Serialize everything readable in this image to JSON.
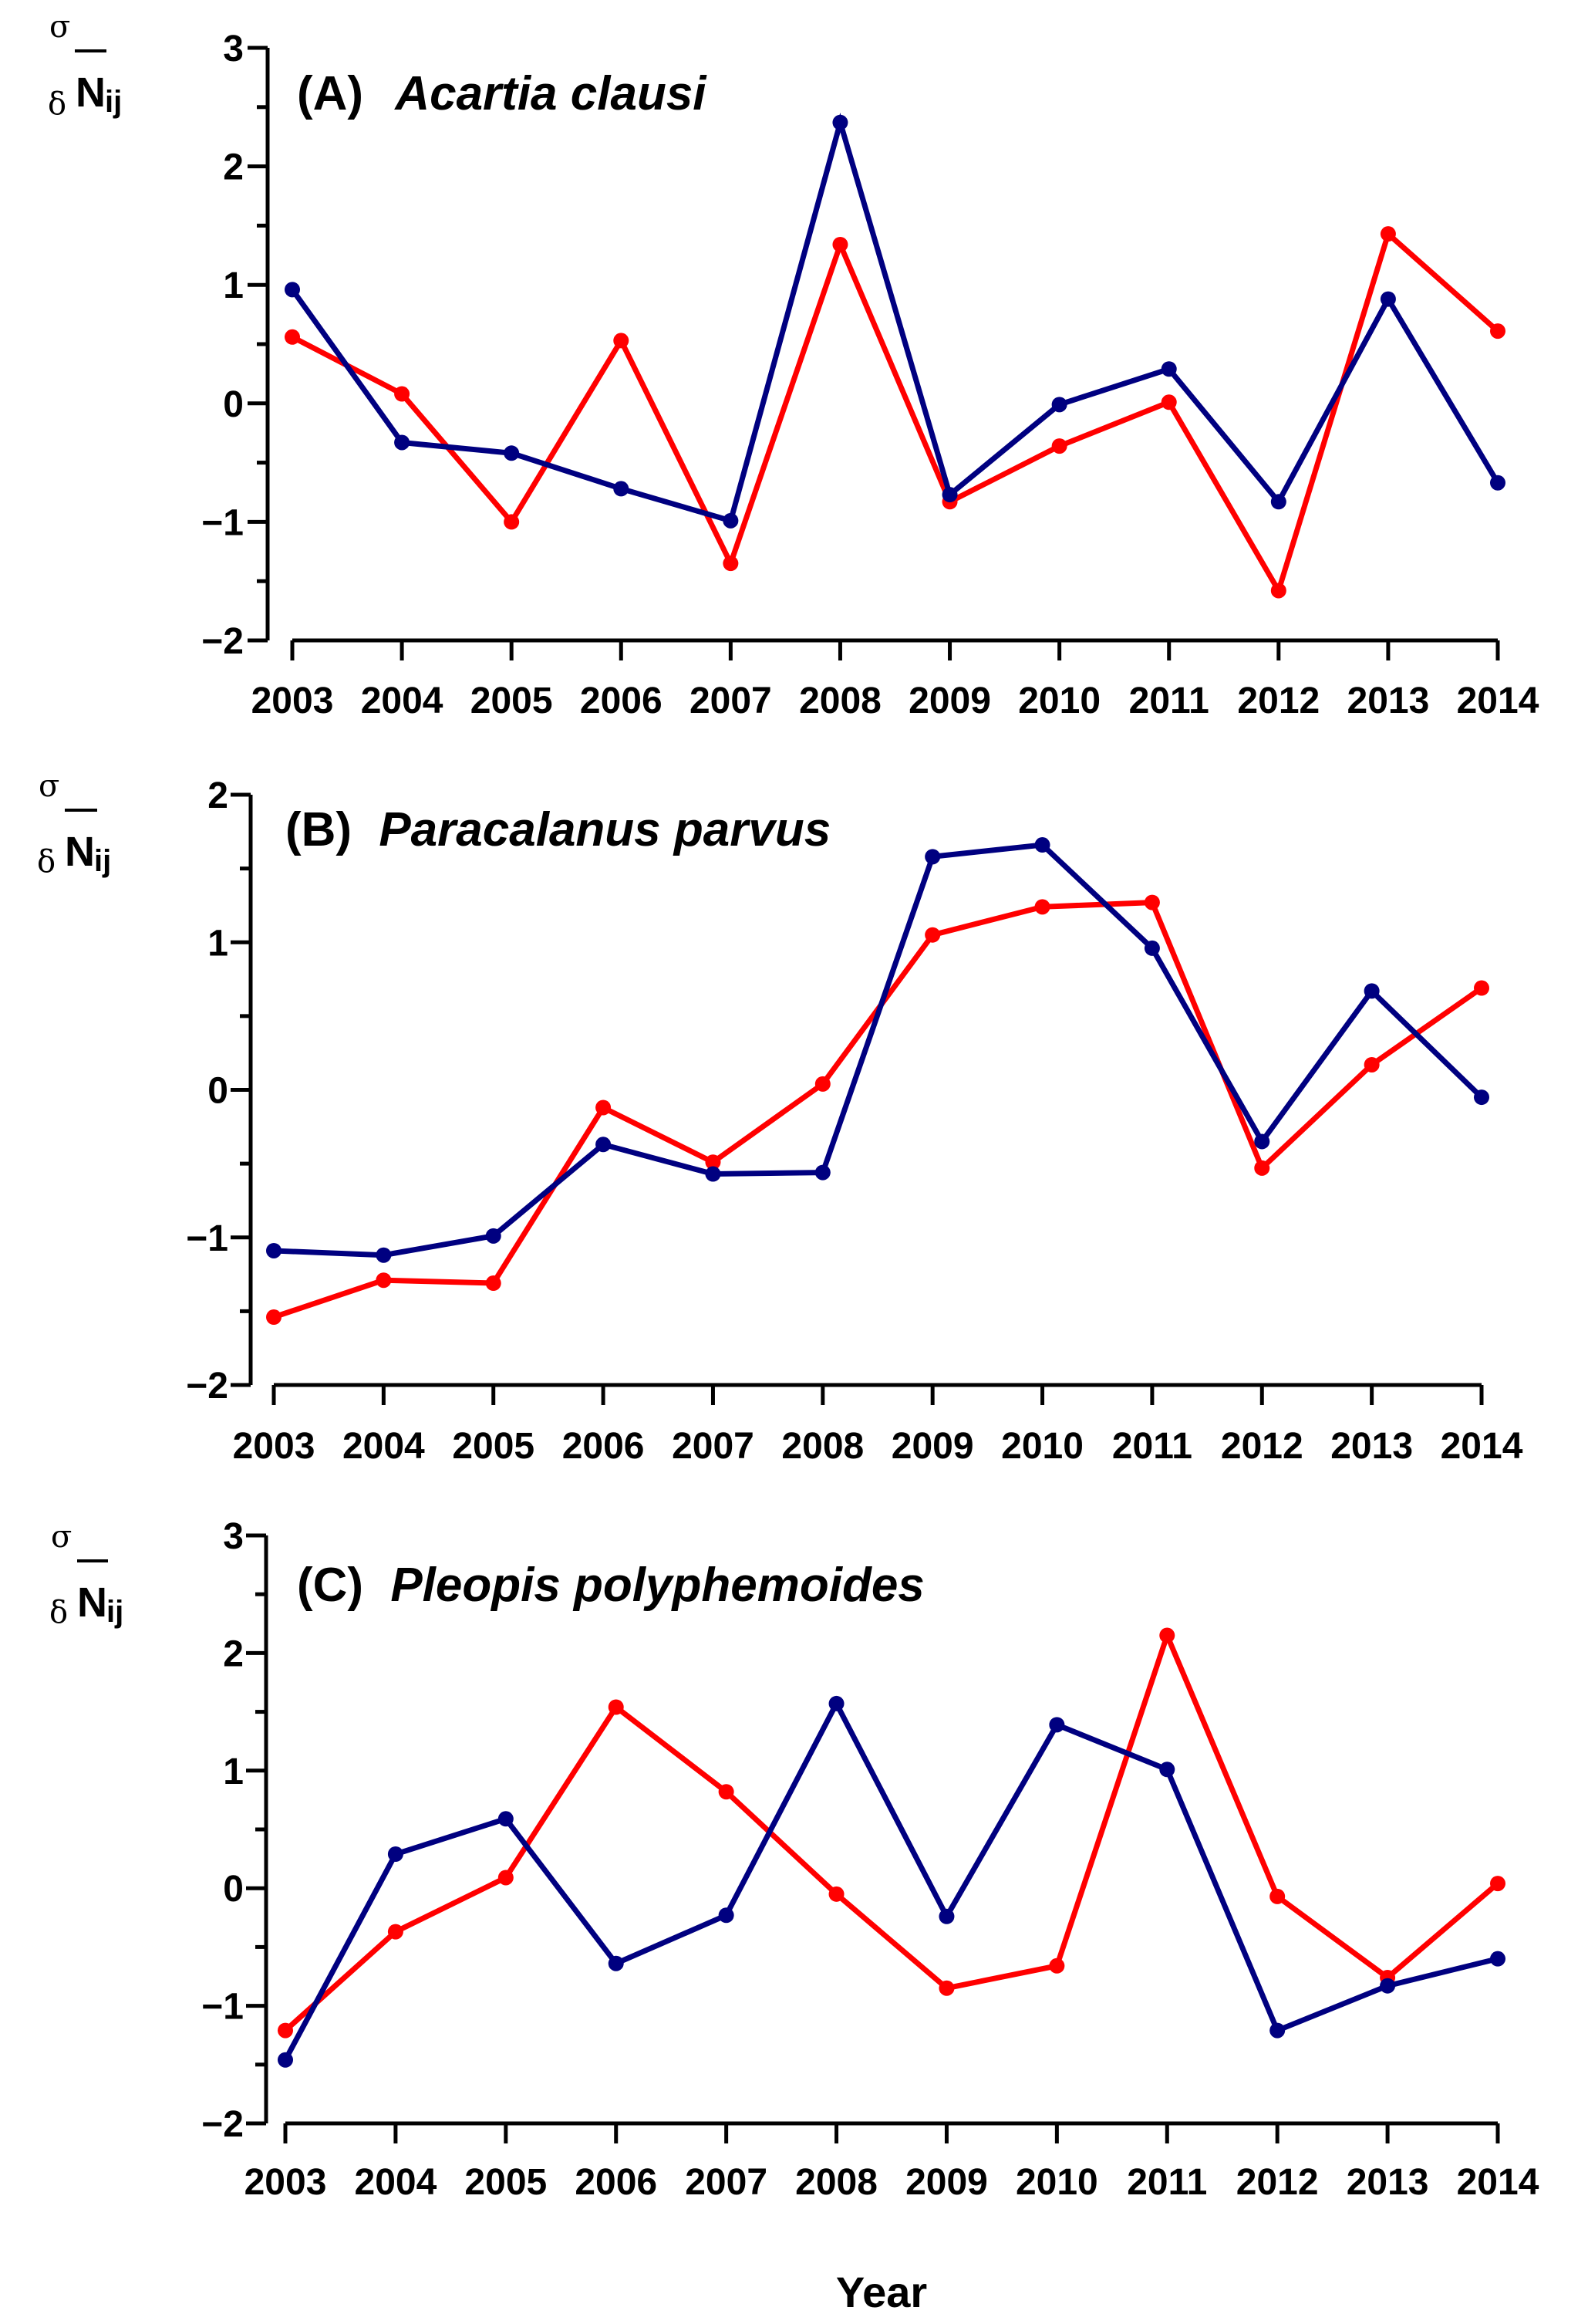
{
  "chart_data": [
    {
      "type": "line",
      "panel_label": "(A)",
      "title": "Acartia clausi",
      "ylabel": {
        "sigma": "σ",
        "delta": "δ",
        "n": "N",
        "sub": "ij"
      },
      "xlabel": "",
      "x": [
        "2003",
        "2004",
        "2005",
        "2006",
        "2007",
        "2008",
        "2009",
        "2010",
        "2011",
        "2012",
        "2013",
        "2014"
      ],
      "ylim": [
        -2,
        3
      ],
      "yticks": [
        -2,
        -1,
        0,
        1,
        2,
        3
      ],
      "ytick_labels": [
        "−2",
        "−1",
        "0",
        "1",
        "2",
        "3"
      ],
      "series": [
        {
          "name": "red",
          "color": "#ff0000",
          "values": [
            0.56,
            0.08,
            -1.0,
            0.53,
            -1.35,
            1.34,
            -0.83,
            -0.36,
            0.01,
            -1.58,
            1.43,
            0.61
          ]
        },
        {
          "name": "blue",
          "color": "#000080",
          "values": [
            0.96,
            -0.33,
            -0.42,
            -0.72,
            -0.99,
            2.37,
            -0.77,
            -0.01,
            0.29,
            -0.83,
            0.88,
            -0.67
          ]
        }
      ]
    },
    {
      "type": "line",
      "panel_label": "(B)",
      "title": "Paracalanus parvus",
      "ylabel": {
        "sigma": "σ",
        "delta": "δ",
        "n": "N",
        "sub": "ij"
      },
      "xlabel": "",
      "x": [
        "2003",
        "2004",
        "2005",
        "2006",
        "2007",
        "2008",
        "2009",
        "2010",
        "2011",
        "2012",
        "2013",
        "2014"
      ],
      "ylim": [
        -2,
        2
      ],
      "yticks": [
        -2,
        -1,
        0,
        1,
        2
      ],
      "ytick_labels": [
        "−2",
        "−1",
        "0",
        "1",
        "2"
      ],
      "series": [
        {
          "name": "red",
          "color": "#ff0000",
          "values": [
            -1.54,
            -1.29,
            -1.31,
            -0.12,
            -0.49,
            0.04,
            1.05,
            1.24,
            1.27,
            -0.53,
            0.17,
            0.69
          ]
        },
        {
          "name": "blue",
          "color": "#000080",
          "values": [
            -1.09,
            -1.12,
            -0.99,
            -0.37,
            -0.57,
            -0.56,
            1.58,
            1.66,
            0.96,
            -0.35,
            0.67,
            -0.05
          ]
        }
      ]
    },
    {
      "type": "line",
      "panel_label": "(C)",
      "title": "Pleopis polyphemoides",
      "ylabel": {
        "sigma": "σ",
        "delta": "δ",
        "n": "N",
        "sub": "ij"
      },
      "xlabel": "Year",
      "x": [
        "2003",
        "2004",
        "2005",
        "2006",
        "2007",
        "2008",
        "2009",
        "2010",
        "2011",
        "2012",
        "2013",
        "2014"
      ],
      "ylim": [
        -2,
        3
      ],
      "yticks": [
        -2,
        -1,
        0,
        1,
        2,
        3
      ],
      "ytick_labels": [
        "−2",
        "−1",
        "0",
        "1",
        "2",
        "3"
      ],
      "series": [
        {
          "name": "red",
          "color": "#ff0000",
          "values": [
            -1.21,
            -0.37,
            0.09,
            1.54,
            0.82,
            -0.05,
            -0.85,
            -0.66,
            2.15,
            -0.07,
            -0.76,
            0.04
          ]
        },
        {
          "name": "blue",
          "color": "#000080",
          "values": [
            -1.46,
            0.29,
            0.59,
            -0.64,
            -0.23,
            1.57,
            -0.24,
            1.39,
            1.01,
            -1.21,
            -0.83,
            -0.6
          ]
        }
      ]
    }
  ]
}
